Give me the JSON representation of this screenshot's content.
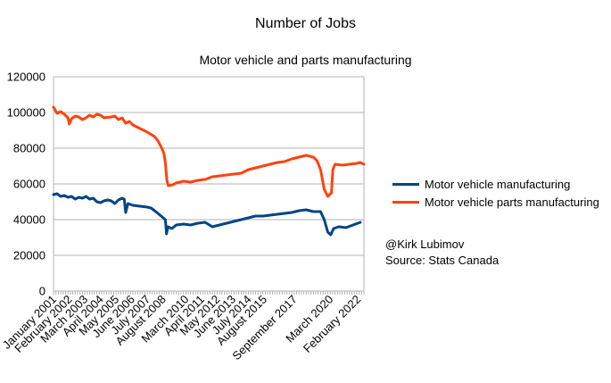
{
  "chart_data": {
    "type": "line",
    "title": "Number of Jobs",
    "subtitle": "Motor vehicle and parts manufacturing",
    "xlabel": "",
    "ylabel": "",
    "ylim": [
      0,
      120000
    ],
    "yticks": [
      0,
      20000,
      40000,
      60000,
      80000,
      100000,
      120000
    ],
    "tick_labels": [
      "January 2001",
      "February 2002",
      "March 2003",
      "April 2004",
      "May 2005",
      "June 2006",
      "July 2007",
      "August 2008",
      "March 2010",
      "April 2011",
      "May 2012",
      "June 2013",
      "July 2014",
      "August 2015",
      "September 2017",
      "March 2020",
      "February 2022"
    ],
    "tick_years": [
      2001.0,
      2002.08,
      2003.17,
      2004.25,
      2005.33,
      2006.42,
      2007.5,
      2008.58,
      2010.17,
      2011.25,
      2012.33,
      2013.42,
      2014.5,
      2015.58,
      2017.67,
      2020.17,
      2022.08
    ],
    "x_range": [
      2001.0,
      2022.5
    ],
    "grid": true,
    "legend_position": "right",
    "series": [
      {
        "name": "Motor vehicle manufacturing",
        "color": "#004586",
        "points": [
          [
            2001.0,
            54000
          ],
          [
            2001.25,
            54500
          ],
          [
            2001.5,
            53000
          ],
          [
            2001.75,
            53500
          ],
          [
            2002.0,
            52500
          ],
          [
            2002.25,
            53000
          ],
          [
            2002.5,
            51500
          ],
          [
            2002.75,
            52500
          ],
          [
            2003.0,
            52000
          ],
          [
            2003.25,
            53000
          ],
          [
            2003.5,
            51500
          ],
          [
            2003.75,
            52000
          ],
          [
            2004.0,
            50000
          ],
          [
            2004.25,
            49500
          ],
          [
            2004.5,
            50500
          ],
          [
            2004.75,
            51000
          ],
          [
            2005.0,
            50500
          ],
          [
            2005.25,
            49000
          ],
          [
            2005.5,
            51000
          ],
          [
            2005.75,
            52000
          ],
          [
            2005.9,
            51500
          ],
          [
            2006.0,
            44000
          ],
          [
            2006.15,
            49000
          ],
          [
            2006.5,
            48000
          ],
          [
            2007.0,
            47500
          ],
          [
            2007.5,
            47000
          ],
          [
            2007.75,
            46500
          ],
          [
            2008.0,
            45000
          ],
          [
            2008.3,
            43000
          ],
          [
            2008.6,
            41000
          ],
          [
            2008.75,
            40000
          ],
          [
            2008.83,
            32000
          ],
          [
            2008.92,
            36000
          ],
          [
            2009.2,
            35000
          ],
          [
            2009.5,
            37000
          ],
          [
            2010.0,
            37500
          ],
          [
            2010.5,
            37000
          ],
          [
            2011.0,
            38000
          ],
          [
            2011.5,
            38500
          ],
          [
            2012.0,
            36000
          ],
          [
            2012.5,
            37000
          ],
          [
            2013.0,
            38000
          ],
          [
            2013.5,
            39000
          ],
          [
            2014.0,
            40000
          ],
          [
            2014.5,
            41000
          ],
          [
            2015.0,
            42000
          ],
          [
            2015.5,
            42000
          ],
          [
            2016.0,
            42500
          ],
          [
            2016.5,
            43000
          ],
          [
            2017.0,
            43500
          ],
          [
            2017.5,
            44000
          ],
          [
            2018.0,
            45000
          ],
          [
            2018.5,
            45500
          ],
          [
            2019.0,
            44500
          ],
          [
            2019.5,
            44500
          ],
          [
            2019.75,
            40000
          ],
          [
            2020.0,
            33000
          ],
          [
            2020.2,
            31500
          ],
          [
            2020.4,
            35000
          ],
          [
            2020.75,
            36000
          ],
          [
            2021.25,
            35500
          ],
          [
            2021.75,
            37000
          ],
          [
            2022.25,
            38500
          ]
        ]
      },
      {
        "name": "Motor vehicle parts manufacturing",
        "color": "#ff420e",
        "points": [
          [
            2001.0,
            103000
          ],
          [
            2001.25,
            99500
          ],
          [
            2001.5,
            100500
          ],
          [
            2001.75,
            99000
          ],
          [
            2002.0,
            97000
          ],
          [
            2002.1,
            93500
          ],
          [
            2002.25,
            96500
          ],
          [
            2002.5,
            98000
          ],
          [
            2002.75,
            97500
          ],
          [
            2003.0,
            96000
          ],
          [
            2003.25,
            97000
          ],
          [
            2003.5,
            98500
          ],
          [
            2003.75,
            97500
          ],
          [
            2004.0,
            99000
          ],
          [
            2004.25,
            98500
          ],
          [
            2004.5,
            97000
          ],
          [
            2005.0,
            97500
          ],
          [
            2005.25,
            98000
          ],
          [
            2005.5,
            96000
          ],
          [
            2005.75,
            97000
          ],
          [
            2006.0,
            94000
          ],
          [
            2006.25,
            95000
          ],
          [
            2006.5,
            93000
          ],
          [
            2007.0,
            91000
          ],
          [
            2007.5,
            89000
          ],
          [
            2008.0,
            86500
          ],
          [
            2008.25,
            84000
          ],
          [
            2008.5,
            80000
          ],
          [
            2008.65,
            77000
          ],
          [
            2008.75,
            72000
          ],
          [
            2008.85,
            62000
          ],
          [
            2008.95,
            59000
          ],
          [
            2009.25,
            59500
          ],
          [
            2009.5,
            60500
          ],
          [
            2010.0,
            61500
          ],
          [
            2010.5,
            61000
          ],
          [
            2011.0,
            62000
          ],
          [
            2011.5,
            62500
          ],
          [
            2012.0,
            64000
          ],
          [
            2012.5,
            64500
          ],
          [
            2013.0,
            65000
          ],
          [
            2013.5,
            65500
          ],
          [
            2014.0,
            66000
          ],
          [
            2014.5,
            68000
          ],
          [
            2015.0,
            69000
          ],
          [
            2015.5,
            70000
          ],
          [
            2016.0,
            71000
          ],
          [
            2016.5,
            72000
          ],
          [
            2017.0,
            72500
          ],
          [
            2017.5,
            74000
          ],
          [
            2018.0,
            75000
          ],
          [
            2018.5,
            76000
          ],
          [
            2019.0,
            75000
          ],
          [
            2019.25,
            73000
          ],
          [
            2019.5,
            68000
          ],
          [
            2019.75,
            57000
          ],
          [
            2020.0,
            53000
          ],
          [
            2020.25,
            55000
          ],
          [
            2020.35,
            68000
          ],
          [
            2020.5,
            71000
          ],
          [
            2021.0,
            70500
          ],
          [
            2021.5,
            71000
          ],
          [
            2022.0,
            71500
          ],
          [
            2022.25,
            72000
          ],
          [
            2022.5,
            71000
          ]
        ]
      }
    ]
  },
  "annotation": {
    "author": "@Kirk Lubimov",
    "source": "Source: Stats Canada"
  }
}
